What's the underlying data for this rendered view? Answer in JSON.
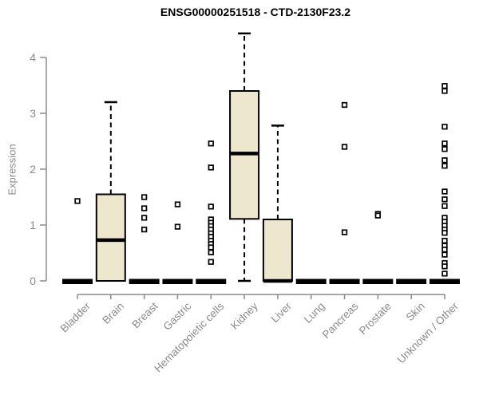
{
  "chart_data": {
    "type": "boxplot",
    "title": "ENSG00000251518 - CTD-2130F23.2",
    "ylabel": "Expression",
    "xlabel": "",
    "ylim": [
      0,
      4.5
    ],
    "yticks": [
      0,
      1,
      2,
      3,
      4
    ],
    "grid": false,
    "legend": "none",
    "colors": {
      "box_fill": "#EDE7CE",
      "box_stroke": "#000000",
      "axis_line": "#8b8b8b",
      "tick_text": "#8b8b8b",
      "title_text": "#000000"
    },
    "categories": [
      "Bladder",
      "Brain",
      "Breast",
      "Gastric",
      "Hematopoietic cells",
      "Kidney",
      "Liver",
      "Lung",
      "Pancreas",
      "Prostate",
      "Skin",
      "Unknown / Other"
    ],
    "series": [
      {
        "category": "Bladder",
        "q1": 0,
        "median": 0,
        "q3": 0,
        "whisker_low": 0,
        "whisker_high": 0,
        "outliers": [
          1.43
        ]
      },
      {
        "category": "Brain",
        "q1": 0,
        "median": 0.73,
        "q3": 1.55,
        "whisker_low": 0,
        "whisker_high": 3.2,
        "outliers": []
      },
      {
        "category": "Breast",
        "q1": 0,
        "median": 0,
        "q3": 0,
        "whisker_low": 0,
        "whisker_high": 0,
        "outliers": [
          1.5,
          1.3,
          1.13,
          0.92
        ]
      },
      {
        "category": "Gastric",
        "q1": 0,
        "median": 0,
        "q3": 0,
        "whisker_low": 0,
        "whisker_high": 0,
        "outliers": [
          1.37,
          0.97
        ]
      },
      {
        "category": "Hematopoietic cells",
        "q1": 0,
        "median": 0,
        "q3": 0,
        "whisker_low": 0,
        "whisker_high": 0,
        "outliers": [
          2.46,
          2.03,
          1.33,
          1.1,
          1.04,
          0.98,
          0.92,
          0.85,
          0.79,
          0.72,
          0.66,
          0.6,
          0.51,
          0.34
        ]
      },
      {
        "category": "Kidney",
        "q1": 1.11,
        "median": 2.28,
        "q3": 3.4,
        "whisker_low": 0,
        "whisker_high": 4.43,
        "outliers": []
      },
      {
        "category": "Liver",
        "q1": 0,
        "median": 0,
        "q3": 1.1,
        "whisker_low": 0,
        "whisker_high": 2.78,
        "outliers": []
      },
      {
        "category": "Lung",
        "q1": 0,
        "median": 0,
        "q3": 0,
        "whisker_low": 0,
        "whisker_high": 0,
        "outliers": []
      },
      {
        "category": "Pancreas",
        "q1": 0,
        "median": 0,
        "q3": 0,
        "whisker_low": 0,
        "whisker_high": 0,
        "outliers": [
          3.15,
          2.4,
          0.87
        ]
      },
      {
        "category": "Prostate",
        "q1": 0,
        "median": 0,
        "q3": 0,
        "whisker_low": 0,
        "whisker_high": 0,
        "outliers": [
          1.2,
          1.17
        ]
      },
      {
        "category": "Skin",
        "q1": 0,
        "median": 0,
        "q3": 0,
        "whisker_low": 0,
        "whisker_high": 0,
        "outliers": []
      },
      {
        "category": "Unknown / Other",
        "q1": 0,
        "median": 0,
        "q3": 0,
        "whisker_low": 0,
        "whisker_high": 0,
        "outliers": [
          3.49,
          3.4,
          2.76,
          2.46,
          2.36,
          2.16,
          2.06,
          1.6,
          1.46,
          1.34,
          1.13,
          1.06,
          0.99,
          0.92,
          0.86,
          0.72,
          0.63,
          0.56,
          0.47,
          0.32,
          0.26,
          0.13
        ]
      }
    ]
  }
}
